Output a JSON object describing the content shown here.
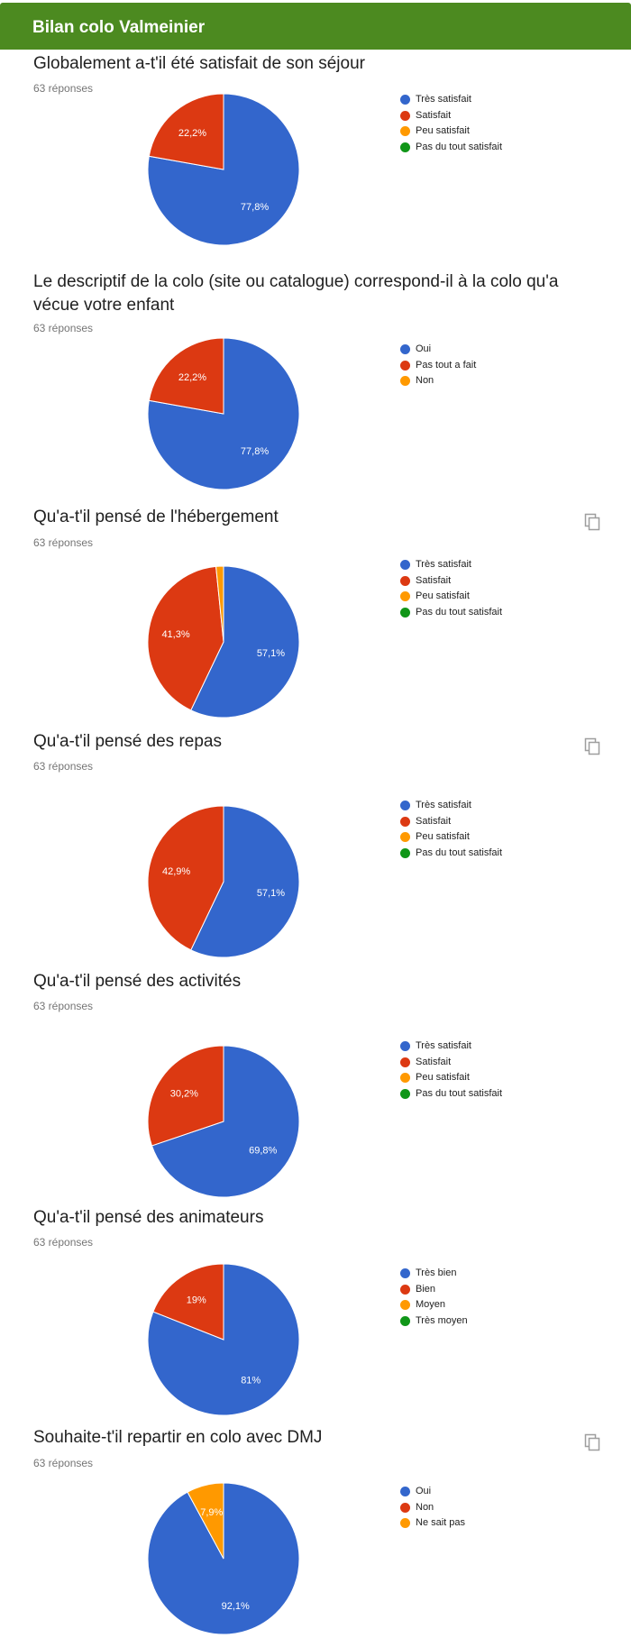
{
  "header": {
    "title": "Bilan colo Valmeinier"
  },
  "questions": [
    {
      "title": "Globalement a-t'il été satisfait de son séjour",
      "count": "63 réponses",
      "copy_icon": false
    },
    {
      "title": "Le descriptif de la colo (site ou catalogue) correspond-il à la colo qu'a vécue votre enfant",
      "count": "63 réponses",
      "copy_icon": false
    },
    {
      "title": "Qu'a-t'il pensé de l'hébergement",
      "count": "63 réponses",
      "copy_icon": true
    },
    {
      "title": "Qu'a-t'il pensé des repas",
      "count": "63 réponses",
      "copy_icon": true
    },
    {
      "title": "Qu'a-t'il pensé des activités",
      "count": "63 réponses",
      "copy_icon": false
    },
    {
      "title": "Qu'a-t'il pensé des animateurs",
      "count": "63 réponses",
      "copy_icon": false
    },
    {
      "title": "Souhaite-t'il repartir en colo avec DMJ",
      "count": "63 réponses",
      "copy_icon": true
    }
  ],
  "colors": {
    "header": "#4c8a20",
    "blue": "#3366cc",
    "red": "#dc3912",
    "orange": "#ff9900",
    "green": "#109618"
  },
  "chart_data": [
    {
      "type": "pie",
      "categories": [
        "Très satisfait",
        "Satisfait",
        "Peu satisfait",
        "Pas du tout satisfait"
      ],
      "values": [
        77.8,
        22.2,
        0,
        0
      ],
      "labels": [
        "77,8%",
        "22,2%",
        "",
        ""
      ],
      "colors": [
        "#3366cc",
        "#dc3912",
        "#ff9900",
        "#109618"
      ],
      "legend": "right"
    },
    {
      "type": "pie",
      "categories": [
        "Oui",
        "Pas tout a fait",
        "Non"
      ],
      "values": [
        77.8,
        22.2,
        0
      ],
      "labels": [
        "77,8%",
        "22,2%",
        ""
      ],
      "colors": [
        "#3366cc",
        "#dc3912",
        "#ff9900"
      ],
      "legend": "right"
    },
    {
      "type": "pie",
      "categories": [
        "Très satisfait",
        "Satisfait",
        "Peu satisfait",
        "Pas du tout satisfait"
      ],
      "values": [
        57.1,
        41.3,
        1.6,
        0
      ],
      "labels": [
        "57,1%",
        "41,3%",
        "",
        ""
      ],
      "colors": [
        "#3366cc",
        "#dc3912",
        "#ff9900",
        "#109618"
      ],
      "legend": "right"
    },
    {
      "type": "pie",
      "categories": [
        "Très satisfait",
        "Satisfait",
        "Peu satisfait",
        "Pas du tout satisfait"
      ],
      "values": [
        57.1,
        42.9,
        0,
        0
      ],
      "labels": [
        "57,1%",
        "42,9%",
        "",
        ""
      ],
      "colors": [
        "#3366cc",
        "#dc3912",
        "#ff9900",
        "#109618"
      ],
      "legend": "right"
    },
    {
      "type": "pie",
      "categories": [
        "Très satisfait",
        "Satisfait",
        "Peu satisfait",
        "Pas du tout satisfait"
      ],
      "values": [
        69.8,
        30.2,
        0,
        0
      ],
      "labels": [
        "69,8%",
        "30,2%",
        "",
        ""
      ],
      "colors": [
        "#3366cc",
        "#dc3912",
        "#ff9900",
        "#109618"
      ],
      "legend": "right"
    },
    {
      "type": "pie",
      "categories": [
        "Très bien",
        "Bien",
        "Moyen",
        "Très moyen"
      ],
      "values": [
        81,
        19,
        0,
        0
      ],
      "labels": [
        "81%",
        "19%",
        "",
        ""
      ],
      "colors": [
        "#3366cc",
        "#dc3912",
        "#ff9900",
        "#109618"
      ],
      "legend": "right"
    },
    {
      "type": "pie",
      "categories": [
        "Oui",
        "Non",
        "Ne sait pas"
      ],
      "values": [
        92.1,
        0,
        7.9
      ],
      "labels": [
        "92,1%",
        "",
        "7,9%"
      ],
      "colors": [
        "#3366cc",
        "#dc3912",
        "#ff9900"
      ],
      "legend": "right"
    }
  ]
}
